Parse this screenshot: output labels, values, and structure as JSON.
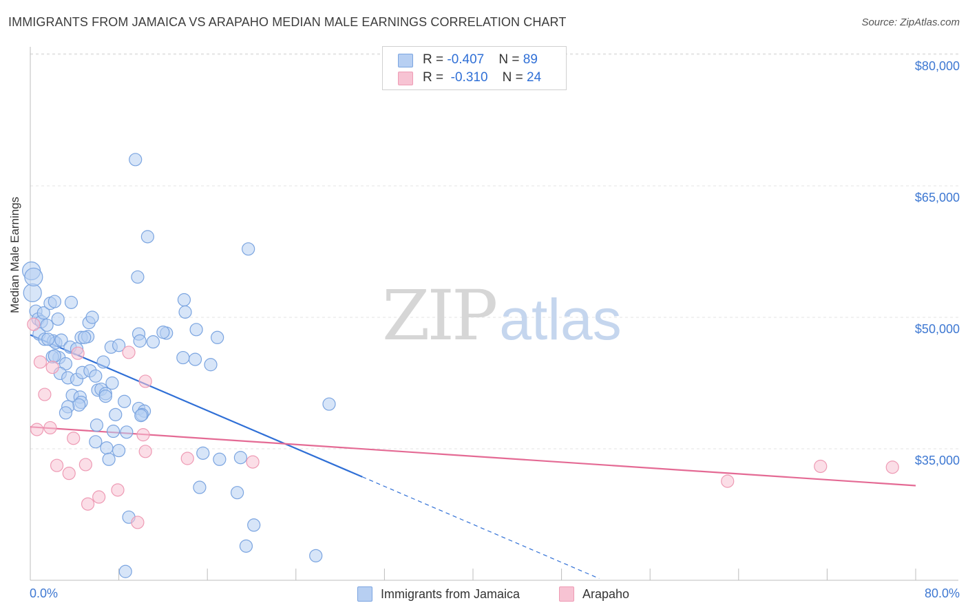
{
  "header": {
    "title": "IMMIGRANTS FROM JAMAICA VS ARAPAHO MEDIAN MALE EARNINGS CORRELATION CHART",
    "source": "Source: ZipAtlas.com"
  },
  "watermark": {
    "part1": "ZIP",
    "part2": "atlas"
  },
  "legend": {
    "rows": [
      {
        "r_label": "R = ",
        "r_value": "-0.407",
        "n_label": "N = ",
        "n_value": "89"
      },
      {
        "r_label": "R = ",
        "r_value": "-0.310",
        "n_label": "N = ",
        "n_value": "24"
      }
    ]
  },
  "bottom_legend": {
    "series1": "Immigrants from Jamaica",
    "series2": "Arapaho"
  },
  "colors": {
    "blue_fill": "#b7cff2",
    "blue_stroke": "#7aa4e0",
    "blue_line": "#2f6fd6",
    "pink_fill": "#f7c3d3",
    "pink_stroke": "#ee9ab4",
    "pink_line": "#e46a94",
    "grid": "#e3e3e3",
    "tick_text": "#3e78d2"
  },
  "chart_data": {
    "type": "scatter",
    "title": "IMMIGRANTS FROM JAMAICA VS ARAPAHO MEDIAN MALE EARNINGS CORRELATION CHART",
    "xlabel": "",
    "ylabel": "Median Male Earnings",
    "xlim": [
      0,
      80
    ],
    "ylim": [
      20000,
      84000
    ],
    "x_tick_labels": [
      "0.0%",
      "80.0%"
    ],
    "y_ticks": [
      {
        "value": 35000,
        "label": "$35,000"
      },
      {
        "value": 50000,
        "label": "$50,000"
      },
      {
        "value": 65000,
        "label": "$65,000"
      },
      {
        "value": 80000,
        "label": "$80,000"
      }
    ],
    "series": [
      {
        "name": "Immigrants from Jamaica",
        "R": -0.407,
        "N": 89,
        "trend": {
          "x": [
            0,
            30
          ],
          "y": [
            48000,
            31800
          ]
        },
        "trend_extension": {
          "x": [
            30,
            51.4
          ],
          "y": [
            31800,
            20200
          ]
        },
        "points": [
          [
            0.1,
            55.3
          ],
          [
            0.2,
            52.8
          ],
          [
            0.3,
            54.6
          ],
          [
            0.5,
            50.7
          ],
          [
            0.7,
            49.8
          ],
          [
            1.0,
            49.5
          ],
          [
            0.8,
            48.1
          ],
          [
            1.2,
            50.5
          ],
          [
            1.3,
            47.5
          ],
          [
            1.5,
            49.1
          ],
          [
            1.8,
            51.6
          ],
          [
            2.2,
            51.8
          ],
          [
            2.5,
            49.8
          ],
          [
            2.1,
            47.3
          ],
          [
            2.3,
            47.1
          ],
          [
            2.8,
            47.4
          ],
          [
            2.6,
            45.4
          ],
          [
            3.2,
            44.7
          ],
          [
            2.0,
            45.5
          ],
          [
            2.7,
            43.6
          ],
          [
            3.7,
            51.7
          ],
          [
            3.6,
            46.6
          ],
          [
            4.2,
            46.4
          ],
          [
            4.6,
            47.7
          ],
          [
            5.2,
            47.8
          ],
          [
            4.9,
            47.7
          ],
          [
            5.3,
            49.4
          ],
          [
            5.6,
            50.0
          ],
          [
            6.6,
            44.9
          ],
          [
            7.3,
            46.6
          ],
          [
            8.0,
            46.8
          ],
          [
            9.5,
            68.0
          ],
          [
            10.6,
            59.2
          ],
          [
            9.7,
            54.6
          ],
          [
            9.8,
            48.1
          ],
          [
            9.9,
            47.3
          ],
          [
            11.1,
            47.2
          ],
          [
            12.3,
            48.2
          ],
          [
            12.0,
            48.3
          ],
          [
            13.9,
            52.0
          ],
          [
            14.0,
            50.6
          ],
          [
            15.0,
            48.6
          ],
          [
            16.9,
            47.7
          ],
          [
            13.8,
            45.4
          ],
          [
            14.9,
            45.2
          ],
          [
            16.3,
            44.6
          ],
          [
            19.7,
            57.8
          ],
          [
            3.4,
            43.1
          ],
          [
            4.2,
            42.9
          ],
          [
            4.7,
            43.7
          ],
          [
            5.4,
            43.9
          ],
          [
            5.9,
            43.3
          ],
          [
            7.4,
            42.5
          ],
          [
            6.1,
            41.7
          ],
          [
            6.4,
            41.8
          ],
          [
            6.8,
            41.3
          ],
          [
            3.8,
            41.1
          ],
          [
            4.5,
            40.9
          ],
          [
            4.6,
            40.3
          ],
          [
            4.4,
            40.0
          ],
          [
            3.4,
            39.8
          ],
          [
            3.2,
            39.1
          ],
          [
            8.5,
            40.4
          ],
          [
            9.8,
            39.6
          ],
          [
            10.3,
            39.3
          ],
          [
            10.1,
            38.9
          ],
          [
            7.7,
            38.9
          ],
          [
            6.0,
            37.7
          ],
          [
            7.5,
            37.0
          ],
          [
            8.7,
            36.9
          ],
          [
            5.9,
            35.8
          ],
          [
            6.9,
            35.1
          ],
          [
            8.0,
            34.8
          ],
          [
            7.1,
            33.8
          ],
          [
            15.6,
            34.5
          ],
          [
            17.1,
            33.8
          ],
          [
            19.0,
            34.0
          ],
          [
            15.3,
            30.6
          ],
          [
            18.7,
            30.0
          ],
          [
            27.0,
            40.1
          ],
          [
            8.9,
            27.2
          ],
          [
            20.2,
            26.3
          ],
          [
            19.5,
            23.9
          ],
          [
            25.8,
            22.8
          ],
          [
            8.6,
            21.0
          ],
          [
            10.0,
            38.8
          ],
          [
            2.2,
            45.6
          ],
          [
            6.8,
            41.0
          ],
          [
            1.6,
            47.5
          ]
        ]
      },
      {
        "name": "Arapaho",
        "R": -0.31,
        "N": 24,
        "trend": {
          "x": [
            0,
            80
          ],
          "y": [
            37500,
            30800
          ]
        },
        "points": [
          [
            0.3,
            49.2
          ],
          [
            0.9,
            44.9
          ],
          [
            1.3,
            41.2
          ],
          [
            2.0,
            44.3
          ],
          [
            4.3,
            45.9
          ],
          [
            8.9,
            46.0
          ],
          [
            10.4,
            42.7
          ],
          [
            0.6,
            37.2
          ],
          [
            1.8,
            37.4
          ],
          [
            3.9,
            36.2
          ],
          [
            10.2,
            36.6
          ],
          [
            10.4,
            34.7
          ],
          [
            2.4,
            33.1
          ],
          [
            5.0,
            33.2
          ],
          [
            14.2,
            33.9
          ],
          [
            20.1,
            33.5
          ],
          [
            3.5,
            32.2
          ],
          [
            6.2,
            29.5
          ],
          [
            5.2,
            28.7
          ],
          [
            7.9,
            30.3
          ],
          [
            9.7,
            26.6
          ],
          [
            63.0,
            31.3
          ],
          [
            71.4,
            33.0
          ],
          [
            77.9,
            32.9
          ]
        ]
      }
    ]
  }
}
